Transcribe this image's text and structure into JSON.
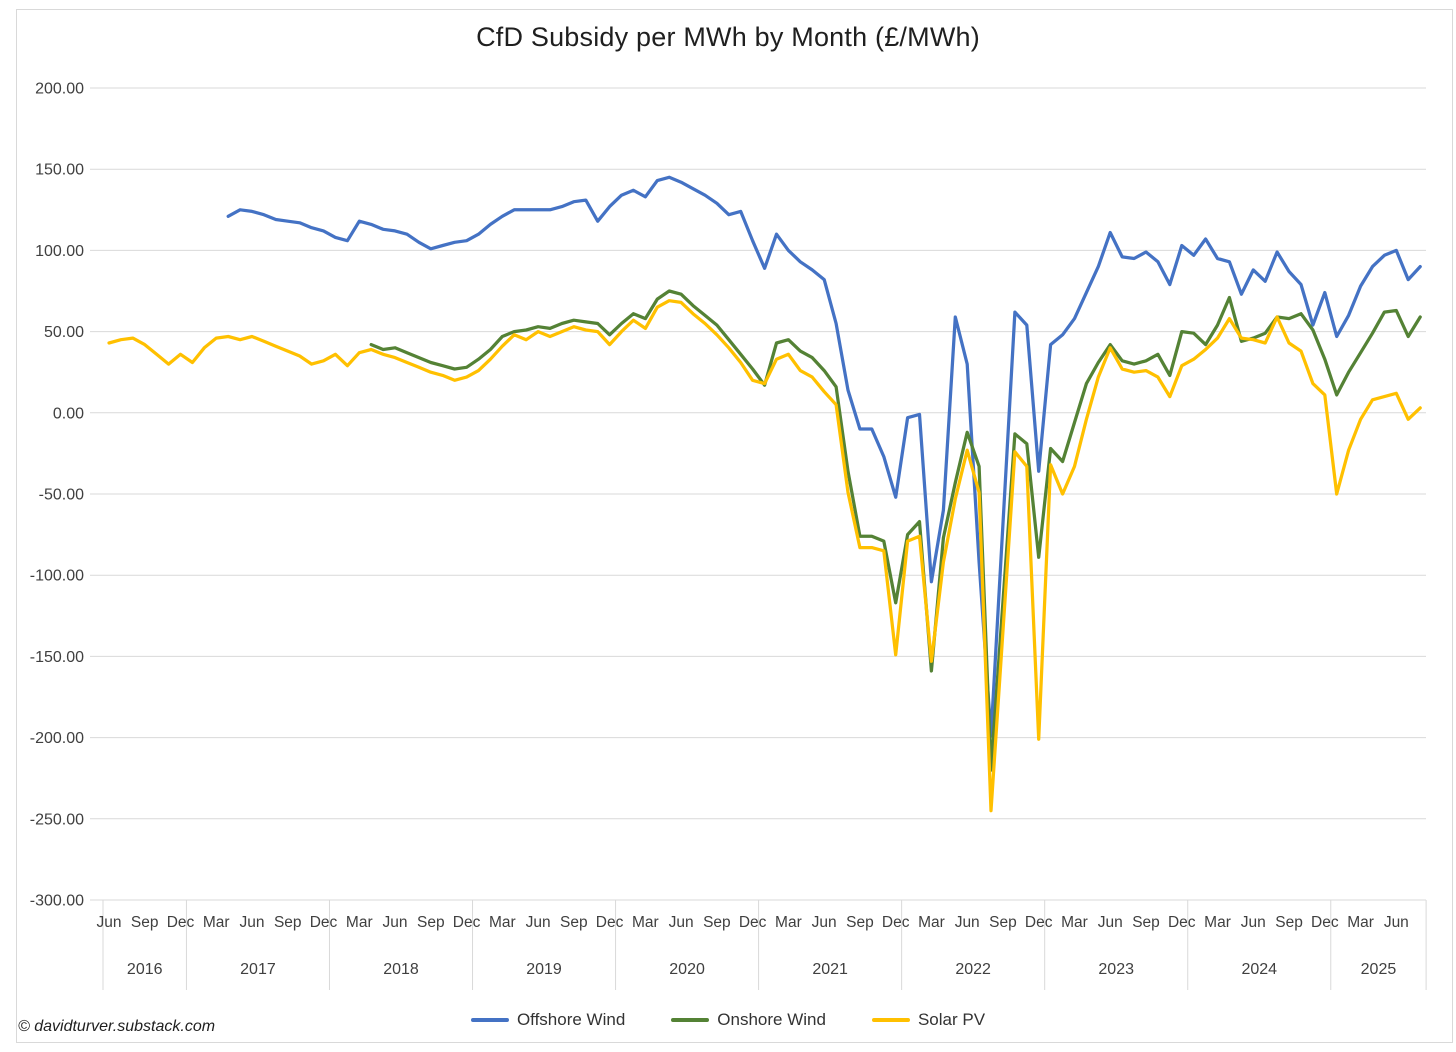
{
  "page": {
    "footer": "© davidturver.substack.com"
  },
  "chart_data": {
    "type": "line",
    "title": "CfD Subsidy per MWh by Month (£/MWh)",
    "xlabel": "",
    "ylabel": "",
    "unit": "£/MWh",
    "x_start": "2016-06",
    "grid": true,
    "legend_position": "bottom",
    "y_axis": {
      "min": -300,
      "max": 200,
      "step": 50,
      "tick_labels": [
        "200.00",
        "150.00",
        "100.00",
        "50.00",
        "0.00",
        "-50.00",
        "-100.00",
        "-150.00",
        "-200.00",
        "-250.00",
        "-300.00"
      ]
    },
    "x_axis": {
      "month_ticks": [
        {
          "i": 0,
          "t": "Jun"
        },
        {
          "i": 3,
          "t": "Sep"
        },
        {
          "i": 6,
          "t": "Dec"
        },
        {
          "i": 9,
          "t": "Mar"
        },
        {
          "i": 12,
          "t": "Jun"
        },
        {
          "i": 15,
          "t": "Sep"
        },
        {
          "i": 18,
          "t": "Dec"
        },
        {
          "i": 21,
          "t": "Mar"
        },
        {
          "i": 24,
          "t": "Jun"
        },
        {
          "i": 27,
          "t": "Sep"
        },
        {
          "i": 30,
          "t": "Dec"
        },
        {
          "i": 33,
          "t": "Mar"
        },
        {
          "i": 36,
          "t": "Jun"
        },
        {
          "i": 39,
          "t": "Sep"
        },
        {
          "i": 42,
          "t": "Dec"
        },
        {
          "i": 45,
          "t": "Mar"
        },
        {
          "i": 48,
          "t": "Jun"
        },
        {
          "i": 51,
          "t": "Sep"
        },
        {
          "i": 54,
          "t": "Dec"
        },
        {
          "i": 57,
          "t": "Mar"
        },
        {
          "i": 60,
          "t": "Jun"
        },
        {
          "i": 63,
          "t": "Sep"
        },
        {
          "i": 66,
          "t": "Dec"
        },
        {
          "i": 69,
          "t": "Mar"
        },
        {
          "i": 72,
          "t": "Jun"
        },
        {
          "i": 75,
          "t": "Sep"
        },
        {
          "i": 78,
          "t": "Dec"
        },
        {
          "i": 81,
          "t": "Mar"
        },
        {
          "i": 84,
          "t": "Jun"
        },
        {
          "i": 87,
          "t": "Sep"
        },
        {
          "i": 90,
          "t": "Dec"
        },
        {
          "i": 93,
          "t": "Mar"
        },
        {
          "i": 96,
          "t": "Jun"
        },
        {
          "i": 99,
          "t": "Sep"
        },
        {
          "i": 102,
          "t": "Dec"
        },
        {
          "i": 105,
          "t": "Mar"
        },
        {
          "i": 108,
          "t": "Jun"
        }
      ],
      "year_bands": [
        {
          "t": "2016",
          "from": 0,
          "to": 6
        },
        {
          "t": "2017",
          "from": 7,
          "to": 18
        },
        {
          "t": "2018",
          "from": 19,
          "to": 30
        },
        {
          "t": "2019",
          "from": 31,
          "to": 42
        },
        {
          "t": "2020",
          "from": 43,
          "to": 54
        },
        {
          "t": "2021",
          "from": 55,
          "to": 66
        },
        {
          "t": "2022",
          "from": 67,
          "to": 78
        },
        {
          "t": "2023",
          "from": 79,
          "to": 90
        },
        {
          "t": "2024",
          "from": 91,
          "to": 102
        },
        {
          "t": "2025",
          "from": 103,
          "to": 110
        }
      ]
    },
    "series": [
      {
        "name": "Offshore Wind",
        "color": "#4472C4",
        "values": [
          null,
          null,
          null,
          null,
          null,
          null,
          null,
          null,
          null,
          null,
          121,
          125,
          124,
          122,
          119,
          118,
          117,
          114,
          112,
          108,
          106,
          118,
          116,
          113,
          112,
          110,
          105,
          101,
          103,
          105,
          106,
          110,
          116,
          121,
          125,
          125,
          125,
          125,
          127,
          130,
          131,
          118,
          127,
          134,
          137,
          133,
          143,
          145,
          142,
          138,
          134,
          129,
          122,
          124,
          106,
          89,
          110,
          100,
          93,
          88,
          82,
          55,
          14,
          -10,
          -10,
          -27,
          -52,
          -3,
          -1,
          -104,
          -60,
          59,
          30,
          -92,
          -199,
          -68,
          62,
          54,
          -36,
          42,
          48,
          58,
          74,
          90,
          111,
          96,
          95,
          99,
          93,
          79,
          103,
          97,
          107,
          95,
          93,
          73,
          88,
          81,
          99,
          87,
          79,
          54,
          74,
          47,
          60,
          78,
          90,
          97,
          100,
          82,
          90
        ]
      },
      {
        "name": "Onshore Wind",
        "color": "#548235",
        "values": [
          null,
          null,
          null,
          null,
          null,
          null,
          null,
          null,
          null,
          null,
          null,
          null,
          null,
          null,
          null,
          null,
          null,
          null,
          null,
          null,
          null,
          null,
          42,
          39,
          40,
          37,
          34,
          31,
          29,
          27,
          28,
          33,
          39,
          47,
          50,
          51,
          53,
          52,
          55,
          57,
          56,
          55,
          48,
          55,
          61,
          58,
          70,
          75,
          73,
          66,
          60,
          54,
          45,
          36,
          27,
          17,
          43,
          45,
          38,
          34,
          26,
          16,
          -36,
          -76,
          -76,
          -79,
          -117,
          -75,
          -67,
          -159,
          -77,
          -43,
          -12,
          -33,
          -220,
          -116,
          -13,
          -19,
          -89,
          -22,
          -30,
          -6,
          18,
          31,
          42,
          32,
          30,
          32,
          36,
          23,
          50,
          49,
          42,
          54,
          71,
          44,
          46,
          49,
          59,
          58,
          61,
          51,
          33,
          11,
          25,
          37,
          49,
          62,
          63,
          47,
          59
        ]
      },
      {
        "name": "Solar PV",
        "color": "#FFC000",
        "values": [
          43,
          45,
          46,
          42,
          36,
          30,
          36,
          31,
          40,
          46,
          47,
          45,
          47,
          44,
          41,
          38,
          35,
          30,
          32,
          36,
          29,
          37,
          39,
          36,
          34,
          31,
          28,
          25,
          23,
          20,
          22,
          26,
          33,
          41,
          48,
          45,
          50,
          47,
          50,
          53,
          51,
          50,
          42,
          50,
          57,
          52,
          65,
          69,
          68,
          61,
          55,
          48,
          40,
          31,
          20,
          18,
          33,
          36,
          26,
          22,
          13,
          5,
          -49,
          -83,
          -83,
          -85,
          -149,
          -79,
          -76,
          -153,
          -92,
          -53,
          -23,
          -49,
          -245,
          -134,
          -24,
          -33,
          -201,
          -32,
          -50,
          -33,
          -4,
          22,
          40,
          27,
          25,
          26,
          22,
          10,
          29,
          33,
          39,
          46,
          58,
          46,
          45,
          43,
          59,
          43,
          38,
          18,
          11,
          -50,
          -23,
          -4,
          8,
          10,
          12,
          -4,
          3
        ]
      }
    ]
  }
}
